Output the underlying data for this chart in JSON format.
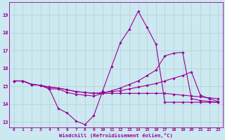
{
  "xlabel": "Windchill (Refroidissement éolien,°C)",
  "bg_color": "#cce8f0",
  "line_color": "#990099",
  "grid_color": "#aacccc",
  "xlim": [
    -0.5,
    23.5
  ],
  "ylim": [
    12.7,
    19.7
  ],
  "yticks": [
    13,
    14,
    15,
    16,
    17,
    18,
    19
  ],
  "xticks": [
    0,
    1,
    2,
    3,
    4,
    5,
    6,
    7,
    8,
    9,
    10,
    11,
    12,
    13,
    14,
    15,
    16,
    17,
    18,
    19,
    20,
    21,
    22,
    23
  ],
  "lines": [
    {
      "x": [
        0,
        1,
        2,
        3,
        4,
        5,
        6,
        7,
        8,
        9,
        10,
        11,
        12,
        13,
        14,
        15,
        16,
        17,
        18,
        19,
        20,
        21,
        22,
        23
      ],
      "y": [
        15.3,
        15.3,
        15.1,
        15.05,
        14.85,
        13.75,
        13.5,
        13.05,
        12.85,
        13.35,
        14.75,
        16.1,
        17.45,
        18.2,
        19.2,
        18.3,
        17.35,
        14.1,
        14.1,
        14.1,
        14.1,
        14.1,
        14.1,
        14.1
      ]
    },
    {
      "x": [
        0,
        1,
        2,
        3,
        4,
        5,
        6,
        7,
        8,
        9,
        10,
        11,
        12,
        13,
        14,
        15,
        16,
        17,
        18,
        19,
        20,
        21,
        22,
        23
      ],
      "y": [
        15.3,
        15.3,
        15.1,
        15.05,
        14.85,
        14.85,
        14.65,
        14.55,
        14.5,
        14.45,
        14.6,
        14.75,
        14.9,
        15.1,
        15.3,
        15.6,
        15.9,
        16.7,
        16.85,
        16.9,
        14.3,
        14.2,
        14.15,
        14.1
      ]
    },
    {
      "x": [
        0,
        1,
        2,
        3,
        4,
        5,
        6,
        7,
        8,
        9,
        10,
        11,
        12,
        13,
        14,
        15,
        16,
        17,
        18,
        19,
        20,
        21,
        22,
        23
      ],
      "y": [
        15.3,
        15.3,
        15.1,
        15.05,
        14.95,
        14.9,
        14.8,
        14.7,
        14.65,
        14.6,
        14.65,
        14.7,
        14.75,
        14.85,
        14.95,
        15.05,
        15.15,
        15.3,
        15.45,
        15.6,
        15.8,
        14.5,
        14.3,
        14.15
      ]
    },
    {
      "x": [
        0,
        1,
        2,
        3,
        4,
        5,
        6,
        7,
        8,
        9,
        10,
        11,
        12,
        13,
        14,
        15,
        16,
        17,
        18,
        19,
        20,
        21,
        22,
        23
      ],
      "y": [
        15.3,
        15.3,
        15.1,
        15.05,
        14.95,
        14.9,
        14.8,
        14.7,
        14.65,
        14.6,
        14.6,
        14.6,
        14.6,
        14.6,
        14.6,
        14.6,
        14.6,
        14.6,
        14.55,
        14.5,
        14.45,
        14.4,
        14.35,
        14.3
      ]
    }
  ]
}
